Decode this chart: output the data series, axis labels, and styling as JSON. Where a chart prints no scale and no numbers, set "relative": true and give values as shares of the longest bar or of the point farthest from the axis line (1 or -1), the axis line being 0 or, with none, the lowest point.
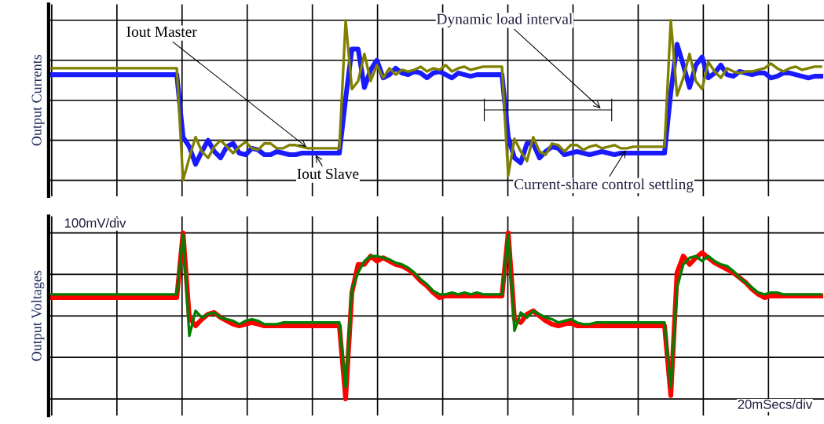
{
  "chart_data": [
    {
      "type": "line",
      "relative": true,
      "ylabel": "Output Currents",
      "grid": true,
      "tick_labels": false,
      "categories": [
        null,
        null,
        null,
        null,
        null,
        null,
        null,
        null,
        null,
        null,
        null,
        null,
        null,
        null,
        null,
        null,
        null,
        null,
        null,
        null,
        null,
        null,
        null,
        null,
        null,
        null,
        null,
        null,
        null,
        null,
        null,
        null,
        null,
        null,
        null,
        null,
        null,
        null,
        null,
        null,
        null,
        null,
        null,
        null,
        null,
        null,
        null,
        null,
        null,
        null,
        null,
        null,
        null,
        null,
        null,
        null,
        null,
        null,
        null,
        null,
        null,
        null,
        null,
        null,
        null,
        null,
        null,
        null,
        null,
        null,
        null,
        null,
        null,
        null,
        null,
        null,
        null,
        null,
        null,
        null,
        null,
        null,
        null,
        null,
        null,
        null,
        null,
        null,
        null,
        null,
        null,
        null,
        null,
        null,
        null,
        null,
        null,
        null,
        null,
        null,
        null,
        null,
        null,
        null,
        null,
        null,
        null,
        null,
        null,
        null,
        null,
        null,
        null,
        null,
        null,
        null,
        null,
        null,
        null,
        null,
        null,
        null,
        null,
        null
      ],
      "series": [
        {
          "name": "Iout Slave",
          "color": "#1a1aff",
          "values": [
            0.66,
            0.66,
            0.66,
            0.66,
            0.66,
            0.66,
            0.66,
            0.66,
            0.66,
            0.66,
            0.66,
            0.66,
            0.66,
            0.66,
            0.66,
            0.66,
            0.66,
            0.66,
            0.66,
            0.66,
            0.66,
            0.27,
            0.21,
            0.1,
            0.18,
            0.25,
            0.18,
            0.14,
            0.21,
            0.23,
            0.17,
            0.16,
            0.2,
            0.19,
            0.16,
            0.16,
            0.18,
            0.17,
            0.16,
            0.16,
            0.17,
            0.17,
            0.17,
            0.17,
            0.17,
            0.17,
            0.17,
            0.51,
            0.82,
            0.82,
            0.58,
            0.69,
            0.75,
            0.64,
            0.66,
            0.7,
            0.67,
            0.66,
            0.68,
            0.67,
            0.64,
            0.67,
            0.68,
            0.66,
            0.64,
            0.67,
            0.66,
            0.65,
            0.66,
            0.66,
            0.66,
            0.66,
            0.66,
            0.27,
            0.14,
            0.11,
            0.23,
            0.23,
            0.14,
            0.18,
            0.21,
            0.2,
            0.16,
            0.17,
            0.18,
            0.17,
            0.16,
            0.17,
            0.18,
            0.17,
            0.16,
            0.17,
            0.17,
            0.17,
            0.17,
            0.17,
            0.17,
            0.17,
            0.17,
            0.55,
            0.85,
            0.72,
            0.58,
            0.72,
            0.77,
            0.64,
            0.67,
            0.72,
            0.66,
            0.65,
            0.68,
            0.67,
            0.66,
            0.67,
            0.67,
            0.64,
            0.65,
            0.67,
            0.67,
            0.66,
            0.65,
            0.64,
            0.65,
            0.65
          ]
        },
        {
          "name": "Iout Master",
          "color": "#808000",
          "values": [
            0.7,
            0.7,
            0.7,
            0.7,
            0.7,
            0.7,
            0.7,
            0.7,
            0.7,
            0.7,
            0.7,
            0.7,
            0.7,
            0.7,
            0.7,
            0.7,
            0.7,
            0.7,
            0.7,
            0.7,
            0.7,
            0.0,
            0.14,
            0.27,
            0.18,
            0.14,
            0.21,
            0.25,
            0.21,
            0.17,
            0.21,
            0.24,
            0.2,
            0.19,
            0.23,
            0.23,
            0.2,
            0.2,
            0.22,
            0.22,
            0.21,
            0.2,
            0.2,
            0.2,
            0.2,
            0.2,
            0.2,
            1.0,
            0.57,
            0.62,
            0.79,
            0.62,
            0.72,
            0.64,
            0.7,
            0.66,
            0.69,
            0.68,
            0.69,
            0.71,
            0.68,
            0.7,
            0.69,
            0.72,
            0.68,
            0.7,
            0.71,
            0.69,
            0.7,
            0.71,
            0.71,
            0.71,
            0.71,
            0.03,
            0.26,
            0.18,
            0.12,
            0.27,
            0.18,
            0.16,
            0.23,
            0.22,
            0.18,
            0.22,
            0.22,
            0.19,
            0.21,
            0.22,
            0.2,
            0.21,
            0.22,
            0.2,
            0.2,
            0.21,
            0.21,
            0.21,
            0.21,
            0.21,
            0.21,
            1.0,
            0.53,
            0.64,
            0.79,
            0.62,
            0.57,
            0.74,
            0.68,
            0.64,
            0.7,
            0.68,
            0.67,
            0.68,
            0.68,
            0.69,
            0.7,
            0.73,
            0.7,
            0.68,
            0.7,
            0.71,
            0.69,
            0.7,
            0.71,
            0.71
          ]
        }
      ],
      "annotations": [
        "Dynamic load interval",
        "Current-share control settling"
      ]
    },
    {
      "type": "line",
      "relative": true,
      "ylabel": "Output Voltages",
      "grid": true,
      "tick_labels": false,
      "categories": [
        null,
        null,
        null,
        null,
        null,
        null,
        null,
        null,
        null,
        null,
        null,
        null,
        null,
        null,
        null,
        null,
        null,
        null,
        null,
        null,
        null,
        null,
        null,
        null,
        null,
        null,
        null,
        null,
        null,
        null,
        null,
        null,
        null,
        null,
        null,
        null,
        null,
        null,
        null,
        null,
        null,
        null,
        null,
        null,
        null,
        null,
        null,
        null,
        null,
        null,
        null,
        null,
        null,
        null,
        null,
        null,
        null,
        null,
        null,
        null,
        null,
        null,
        null,
        null,
        null,
        null,
        null,
        null,
        null,
        null,
        null,
        null,
        null,
        null,
        null,
        null,
        null,
        null,
        null,
        null,
        null,
        null,
        null,
        null,
        null,
        null,
        null,
        null,
        null,
        null,
        null,
        null,
        null,
        null,
        null,
        null,
        null,
        null,
        null,
        null,
        null,
        null,
        null,
        null,
        null,
        null,
        null,
        null,
        null,
        null,
        null,
        null,
        null,
        null,
        null,
        null,
        null,
        null,
        null,
        null,
        null,
        null,
        null,
        null
      ],
      "series": [
        {
          "color": "#ff0000",
          "values": [
            0.61,
            0.61,
            0.61,
            0.61,
            0.61,
            0.61,
            0.61,
            0.61,
            0.61,
            0.61,
            0.61,
            0.61,
            0.61,
            0.61,
            0.61,
            0.61,
            0.61,
            0.61,
            0.61,
            0.61,
            0.61,
            1.0,
            0.49,
            0.44,
            0.48,
            0.51,
            0.52,
            0.49,
            0.47,
            0.45,
            0.44,
            0.45,
            0.46,
            0.45,
            0.44,
            0.44,
            0.44,
            0.44,
            0.44,
            0.44,
            0.44,
            0.44,
            0.44,
            0.44,
            0.44,
            0.44,
            0.44,
            0.0,
            0.64,
            0.81,
            0.81,
            0.86,
            0.83,
            0.85,
            0.83,
            0.81,
            0.8,
            0.78,
            0.75,
            0.71,
            0.68,
            0.64,
            0.61,
            0.62,
            0.62,
            0.62,
            0.62,
            0.62,
            0.62,
            0.62,
            0.62,
            0.62,
            0.62,
            1.0,
            0.48,
            0.46,
            0.51,
            0.53,
            0.5,
            0.47,
            0.45,
            0.44,
            0.45,
            0.46,
            0.44,
            0.44,
            0.44,
            0.44,
            0.44,
            0.44,
            0.44,
            0.44,
            0.44,
            0.44,
            0.44,
            0.44,
            0.44,
            0.44,
            0.44,
            0.02,
            0.76,
            0.86,
            0.81,
            0.85,
            0.88,
            0.85,
            0.82,
            0.8,
            0.78,
            0.76,
            0.73,
            0.7,
            0.66,
            0.63,
            0.61,
            0.62,
            0.62,
            0.62,
            0.62,
            0.62,
            0.62,
            0.62,
            0.62,
            0.62
          ]
        },
        {
          "color": "#008000",
          "values": [
            0.63,
            0.63,
            0.63,
            0.63,
            0.63,
            0.63,
            0.63,
            0.63,
            0.63,
            0.63,
            0.63,
            0.63,
            0.63,
            0.63,
            0.63,
            0.63,
            0.63,
            0.63,
            0.63,
            0.63,
            0.63,
            0.99,
            0.38,
            0.53,
            0.49,
            0.51,
            0.52,
            0.49,
            0.48,
            0.47,
            0.45,
            0.47,
            0.48,
            0.47,
            0.45,
            0.45,
            0.45,
            0.46,
            0.46,
            0.46,
            0.46,
            0.46,
            0.46,
            0.46,
            0.46,
            0.46,
            0.46,
            0.07,
            0.66,
            0.76,
            0.83,
            0.86,
            0.86,
            0.85,
            0.84,
            0.82,
            0.81,
            0.79,
            0.76,
            0.72,
            0.69,
            0.65,
            0.63,
            0.63,
            0.64,
            0.63,
            0.64,
            0.63,
            0.64,
            0.63,
            0.63,
            0.63,
            0.63,
            0.99,
            0.41,
            0.52,
            0.49,
            0.53,
            0.51,
            0.49,
            0.48,
            0.46,
            0.47,
            0.48,
            0.46,
            0.45,
            0.45,
            0.46,
            0.46,
            0.46,
            0.46,
            0.46,
            0.46,
            0.46,
            0.46,
            0.46,
            0.46,
            0.46,
            0.46,
            0.07,
            0.67,
            0.81,
            0.85,
            0.86,
            0.83,
            0.86,
            0.83,
            0.81,
            0.8,
            0.77,
            0.73,
            0.7,
            0.67,
            0.64,
            0.63,
            0.64,
            0.64,
            0.63,
            0.63,
            0.63,
            0.63,
            0.63,
            0.63,
            0.63
          ]
        }
      ],
      "annotations": [
        "100mV/div",
        "20mSecs/div"
      ]
    }
  ]
}
